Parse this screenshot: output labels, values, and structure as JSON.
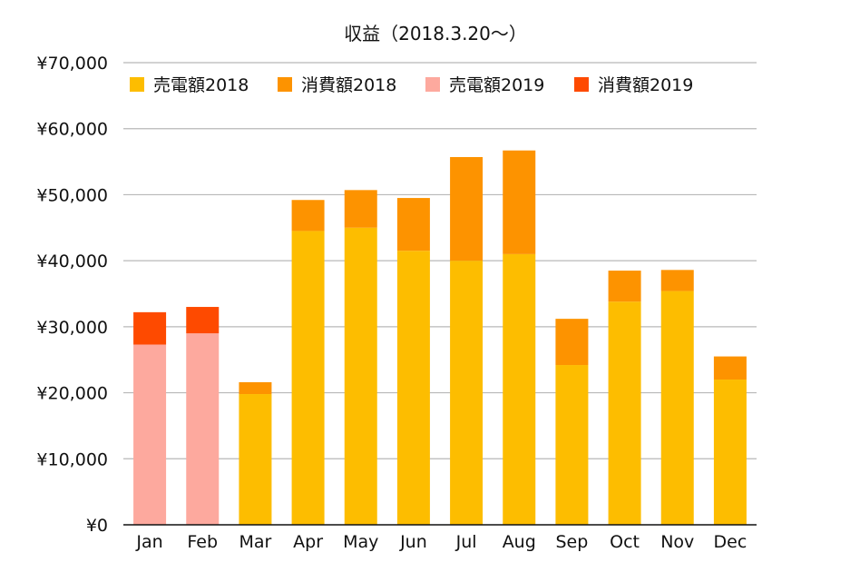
{
  "chart_data": {
    "type": "bar",
    "stacked": true,
    "title": "収益（2018.3.20～）",
    "categories": [
      "Jan",
      "Feb",
      "Mar",
      "Apr",
      "May",
      "Jun",
      "Jul",
      "Aug",
      "Sep",
      "Oct",
      "Nov",
      "Dec"
    ],
    "ylim": [
      0,
      70000
    ],
    "yticks": [
      0,
      10000,
      20000,
      30000,
      40000,
      50000,
      60000,
      70000
    ],
    "ytick_labels": [
      "¥0",
      "¥10,000",
      "¥20,000",
      "¥30,000",
      "¥40,000",
      "¥50,000",
      "¥60,000",
      "¥70,000"
    ],
    "grid": true,
    "legend_position": "top",
    "series": [
      {
        "name": "売電額2018",
        "color": "#FDBD00",
        "values": [
          0,
          0,
          19800,
          44500,
          45000,
          41500,
          40000,
          41000,
          24200,
          33800,
          35400,
          22000
        ]
      },
      {
        "name": "消費額2018",
        "color": "#FD9300",
        "values": [
          0,
          0,
          1800,
          4700,
          5700,
          8000,
          15700,
          15700,
          7000,
          4700,
          3200,
          3500
        ]
      },
      {
        "name": "売電額2019",
        "color": "#FDA99E",
        "values": [
          27300,
          29000,
          0,
          0,
          0,
          0,
          0,
          0,
          0,
          0,
          0,
          0
        ]
      },
      {
        "name": "消費額2019",
        "color": "#FE4A00",
        "values": [
          4900,
          4000,
          0,
          0,
          0,
          0,
          0,
          0,
          0,
          0,
          0,
          0
        ]
      }
    ]
  }
}
